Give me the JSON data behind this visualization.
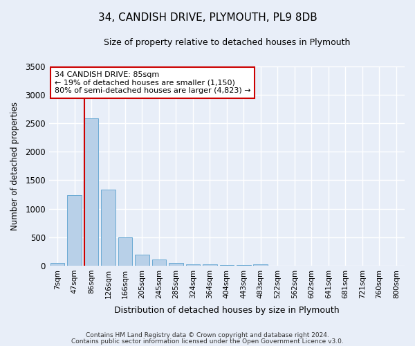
{
  "title": "34, CANDISH DRIVE, PLYMOUTH, PL9 8DB",
  "subtitle": "Size of property relative to detached houses in Plymouth",
  "xlabel": "Distribution of detached houses by size in Plymouth",
  "ylabel": "Number of detached properties",
  "categories": [
    "7sqm",
    "47sqm",
    "86sqm",
    "126sqm",
    "166sqm",
    "205sqm",
    "245sqm",
    "285sqm",
    "324sqm",
    "364sqm",
    "404sqm",
    "443sqm",
    "483sqm",
    "522sqm",
    "562sqm",
    "602sqm",
    "641sqm",
    "681sqm",
    "721sqm",
    "760sqm",
    "800sqm"
  ],
  "values": [
    50,
    1240,
    2590,
    1340,
    495,
    190,
    105,
    45,
    28,
    18,
    12,
    8,
    28,
    0,
    0,
    0,
    0,
    0,
    0,
    0,
    0
  ],
  "bar_color": "#b8d0e8",
  "bar_edge_color": "#6aaad4",
  "background_color": "#e8eef8",
  "grid_color": "#ffffff",
  "annotation_text_line1": "34 CANDISH DRIVE: 85sqm",
  "annotation_text_line2": "← 19% of detached houses are smaller (1,150)",
  "annotation_text_line3": "80% of semi-detached houses are larger (4,823) →",
  "annotation_box_facecolor": "#ffffff",
  "annotation_box_edgecolor": "#cc0000",
  "property_line_color": "#cc0000",
  "ylim": [
    0,
    3500
  ],
  "yticks": [
    0,
    500,
    1000,
    1500,
    2000,
    2500,
    3000,
    3500
  ],
  "title_fontsize": 11,
  "subtitle_fontsize": 9,
  "footer_line1": "Contains HM Land Registry data © Crown copyright and database right 2024.",
  "footer_line2": "Contains public sector information licensed under the Open Government Licence v3.0."
}
